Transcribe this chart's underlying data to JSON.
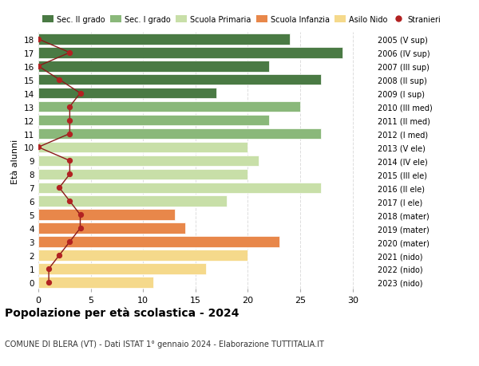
{
  "ages": [
    0,
    1,
    2,
    3,
    4,
    5,
    6,
    7,
    8,
    9,
    10,
    11,
    12,
    13,
    14,
    15,
    16,
    17,
    18
  ],
  "year_labels": [
    "2023 (nido)",
    "2022 (nido)",
    "2021 (nido)",
    "2020 (mater)",
    "2019 (mater)",
    "2018 (mater)",
    "2017 (I ele)",
    "2016 (II ele)",
    "2015 (III ele)",
    "2014 (IV ele)",
    "2013 (V ele)",
    "2012 (I med)",
    "2011 (II med)",
    "2010 (III med)",
    "2009 (I sup)",
    "2008 (II sup)",
    "2007 (III sup)",
    "2006 (IV sup)",
    "2005 (V sup)"
  ],
  "bar_values": [
    11,
    16,
    20,
    23,
    14,
    13,
    18,
    27,
    20,
    21,
    20,
    27,
    22,
    25,
    17,
    27,
    22,
    29,
    24
  ],
  "bar_colors": [
    "#f5d98b",
    "#f5d98b",
    "#f5d98b",
    "#e8874a",
    "#e8874a",
    "#e8874a",
    "#c8dfa8",
    "#c8dfa8",
    "#c8dfa8",
    "#c8dfa8",
    "#c8dfa8",
    "#8ab87a",
    "#8ab87a",
    "#8ab87a",
    "#4a7a44",
    "#4a7a44",
    "#4a7a44",
    "#4a7a44",
    "#4a7a44"
  ],
  "stranieri_values": [
    1,
    1,
    2,
    3,
    4,
    4,
    3,
    2,
    3,
    3,
    0,
    3,
    3,
    3,
    4,
    2,
    0,
    3,
    0
  ],
  "legend_labels": [
    "Sec. II grado",
    "Sec. I grado",
    "Scuola Primaria",
    "Scuola Infanzia",
    "Asilo Nido",
    "Stranieri"
  ],
  "legend_colors": [
    "#4a7a44",
    "#8ab87a",
    "#c8dfa8",
    "#e8874a",
    "#f5d98b",
    "#b22222"
  ],
  "title": "Popolazione per età scolastica - 2024",
  "subtitle": "COMUNE DI BLERA (VT) - Dati ISTAT 1° gennaio 2024 - Elaborazione TUTTITALIA.IT",
  "ylabel_left": "Età alunni",
  "xlim": [
    0,
    32
  ],
  "bar_height": 0.8,
  "background_color": "#ffffff",
  "grid_color": "#dddddd"
}
